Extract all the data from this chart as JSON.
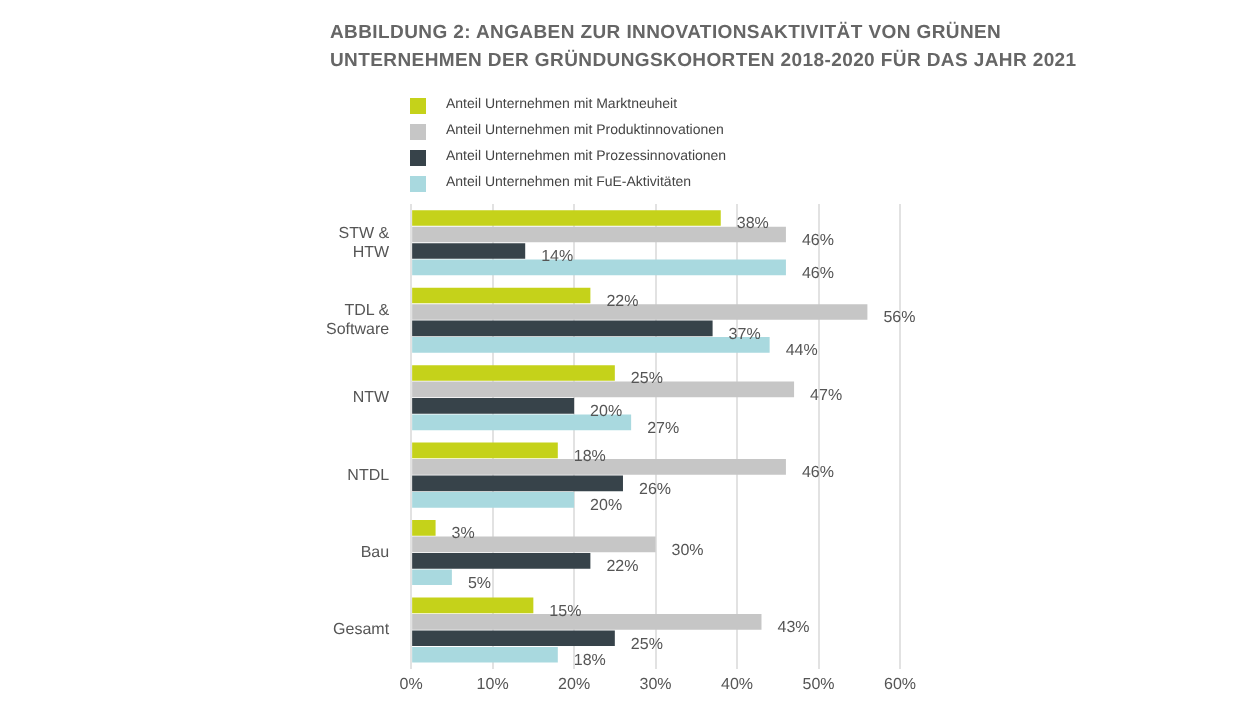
{
  "chart_data": {
    "type": "bar",
    "orientation": "horizontal",
    "title": "ABBILDUNG 2: ANGABEN ZUR INNOVATIONSAKTIVITÄT VON GRÜNEN UNTERNEHMEN DER GRÜNDUNGSKOHORTEN 2018-2020 FÜR DAS JAHR 2021",
    "categories": [
      "STW & HTW",
      "TDL & Software",
      "NTW",
      "NTDL",
      "Bau",
      "Gesamt"
    ],
    "series": [
      {
        "name": "Anteil Unternehmen mit Marktneuheit",
        "color": "#c5d21a",
        "values": [
          38,
          22,
          25,
          18,
          3,
          15
        ],
        "value_labels": [
          "38%",
          "22%",
          "25%",
          "18%",
          "3%",
          "15%"
        ]
      },
      {
        "name": "Anteil Unternehmen mit Produktinnovationen",
        "color": "#c6c6c6",
        "values": [
          46,
          56,
          47,
          46,
          30,
          43
        ],
        "value_labels": [
          "46%",
          "56%",
          "47%",
          "46%",
          "30%",
          "43%"
        ]
      },
      {
        "name": "Anteil Unternehmen mit Prozessinnovationen",
        "color": "#37434a",
        "values": [
          14,
          37,
          20,
          26,
          22,
          25
        ],
        "value_labels": [
          "14%",
          "37%",
          "20%",
          "26%",
          "22%",
          "25%"
        ]
      },
      {
        "name": "Anteil Unternehmen mit FuE-Aktivitäten",
        "color": "#a9d9df",
        "values": [
          46,
          44,
          27,
          20,
          5,
          18
        ],
        "value_labels": [
          "46%",
          "44%",
          "27%",
          "20%",
          "5%",
          "18%"
        ]
      }
    ],
    "xlim": [
      0,
      60
    ],
    "xticks": [
      {
        "value": 0,
        "label": "0%"
      },
      {
        "value": 10,
        "label": "10%"
      },
      {
        "value": 20,
        "label": "20%"
      },
      {
        "value": 30,
        "label": "30%"
      },
      {
        "value": 40,
        "label": "40%"
      },
      {
        "value": 50,
        "label": "50%"
      },
      {
        "value": 60,
        "label": "60%"
      }
    ],
    "grid": "x",
    "legend": "top left"
  }
}
